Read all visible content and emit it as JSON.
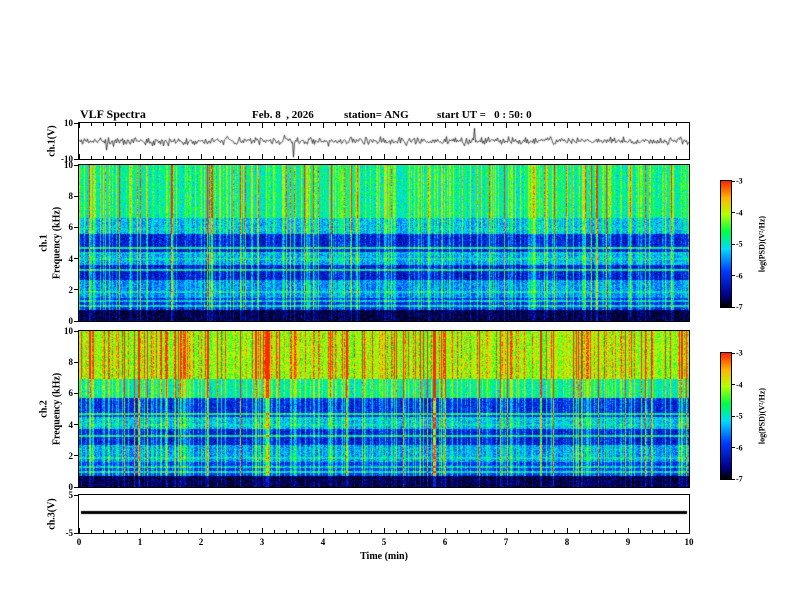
{
  "header": {
    "title": "VLF Spectra",
    "date": "Feb. 8  , 2026",
    "station": "station= ANG",
    "start_ut": "start UT =   0 : 50: 0"
  },
  "axes": {
    "time": {
      "label": "Time (min)",
      "min": 0,
      "max": 10,
      "ticks": [
        0,
        1,
        2,
        3,
        4,
        5,
        6,
        7,
        8,
        9,
        10
      ],
      "minor_step": 0.2
    },
    "ch1_wave": {
      "label": "ch.1(V)",
      "min": -10,
      "max": 10,
      "ticks": [
        10,
        -10
      ]
    },
    "ch1_spec": {
      "label1": "ch.1",
      "label2": "Frequency (kHz)",
      "min": 0,
      "max": 10,
      "ticks": [
        10,
        8,
        6,
        4,
        2,
        0
      ]
    },
    "ch2_spec": {
      "label1": "ch.2",
      "label2": "Frequency (kHz)",
      "min": 0,
      "max": 10,
      "ticks": [
        10,
        8,
        6,
        4,
        2,
        0
      ]
    },
    "ch3_wave": {
      "label": "ch.3(V)",
      "min": -5,
      "max": 5,
      "ticks": [
        5,
        -5
      ]
    }
  },
  "colorbar": {
    "label": "log(PSD)(V²/Hz)",
    "min": -7,
    "max": -3,
    "ticks": [
      -3,
      -4,
      -5,
      -6,
      -7
    ],
    "stops": [
      [
        0,
        "#000000"
      ],
      [
        0.09,
        "#000088"
      ],
      [
        0.28,
        "#0038ff"
      ],
      [
        0.46,
        "#00dcff"
      ],
      [
        0.6,
        "#00ff44"
      ],
      [
        0.74,
        "#b8ff00"
      ],
      [
        0.87,
        "#ffb400"
      ],
      [
        1,
        "#ff2600"
      ]
    ]
  },
  "chart_data": [
    {
      "type": "line",
      "name": "ch1-waveform",
      "ylabel": "ch.1(V)",
      "xlim": [
        0,
        10
      ],
      "ylim": [
        -10,
        10
      ],
      "description": "Broadband noise around 0 V (about ±2 V) with sporadic impulsive spikes reaching roughly ±8 V",
      "synth": {
        "seed": 11,
        "noise_amp": 1.8,
        "spike_prob": 0.013,
        "spike_amp": 9
      }
    },
    {
      "type": "heatmap",
      "name": "ch1-spectrogram",
      "xlabel": "Time (min)",
      "ylabel": "Frequency (kHz)",
      "zlabel": "log(PSD)(V²/Hz)",
      "xlim": [
        0,
        10
      ],
      "ylim": [
        0,
        10
      ],
      "zlim": [
        -7,
        -3
      ],
      "bands": [
        [
          0,
          0.7,
          -6.9
        ],
        [
          0.7,
          1.5,
          -6.2
        ],
        [
          1.5,
          2.6,
          -5.7
        ],
        [
          2.6,
          3.6,
          -6.4
        ],
        [
          3.6,
          4.4,
          -5.6
        ],
        [
          4.4,
          5.6,
          -6.35
        ],
        [
          5.6,
          6.6,
          -5.5
        ],
        [
          6.6,
          10.01,
          -5.05
        ]
      ],
      "tone_lines": [
        [
          0.95,
          0.06,
          -5.3
        ],
        [
          1.3,
          0.06,
          -5.4
        ],
        [
          1.85,
          0.06,
          -5.3
        ],
        [
          3.25,
          0.06,
          -5.2
        ],
        [
          4.0,
          0.06,
          -5.3
        ],
        [
          4.35,
          0.06,
          -5.4
        ],
        [
          4.7,
          0.06,
          -5.1
        ],
        [
          5.9,
          0.06,
          -5.4
        ]
      ],
      "description": "Dense vertical sferic streaks over blue background; brighter green/yellow above ~6 kHz with occasional orange; dark attenuation bands near 2.6-3.6 kHz and 4.4-5.6 kHz; black below ~0.7 kHz; narrow horizontal tone lines",
      "synth": {
        "seed": 7,
        "noise": 0.8,
        "streak_gain": 0.9,
        "strong_prob": 0.08,
        "mid_prob": 0.3
      }
    },
    {
      "type": "heatmap",
      "name": "ch2-spectrogram",
      "xlabel": "Time (min)",
      "ylabel": "Frequency (kHz)",
      "zlabel": "log(PSD)(V²/Hz)",
      "xlim": [
        0,
        10
      ],
      "ylim": [
        0,
        10
      ],
      "zlim": [
        -7,
        -3
      ],
      "bands": [
        [
          0,
          0.7,
          -6.9
        ],
        [
          0.7,
          1.6,
          -6.15
        ],
        [
          1.6,
          2.7,
          -5.65
        ],
        [
          2.7,
          3.7,
          -6.35
        ],
        [
          3.7,
          4.5,
          -5.5
        ],
        [
          4.5,
          5.7,
          -6.25
        ],
        [
          5.7,
          6.9,
          -5.1
        ],
        [
          6.9,
          10.01,
          -4.35
        ]
      ],
      "tone_lines": [
        [
          0.95,
          0.06,
          -5.3
        ],
        [
          1.3,
          0.06,
          -5.4
        ],
        [
          1.85,
          0.06,
          -5.3
        ],
        [
          3.25,
          0.06,
          -5.2
        ],
        [
          4.0,
          0.06,
          -5.3
        ],
        [
          4.35,
          0.06,
          -5.4
        ],
        [
          4.7,
          0.06,
          -5.1
        ],
        [
          5.9,
          0.06,
          -5.4
        ]
      ],
      "description": "Like ch.1 but more intense: yellow/orange background with red streaks above ~7 kHz",
      "synth": {
        "seed": 23,
        "noise": 0.8,
        "streak_gain": 1.05,
        "strong_prob": 0.09,
        "mid_prob": 0.32
      }
    },
    {
      "type": "line",
      "name": "ch3-waveform",
      "ylabel": "ch.3(V)",
      "xlim": [
        0,
        10
      ],
      "ylim": [
        -5,
        5
      ],
      "description": "Flat constant trace (thick black line) at about +0.5 V for the whole interval",
      "synth": {
        "level": 0.5,
        "thickness": 3
      }
    }
  ]
}
